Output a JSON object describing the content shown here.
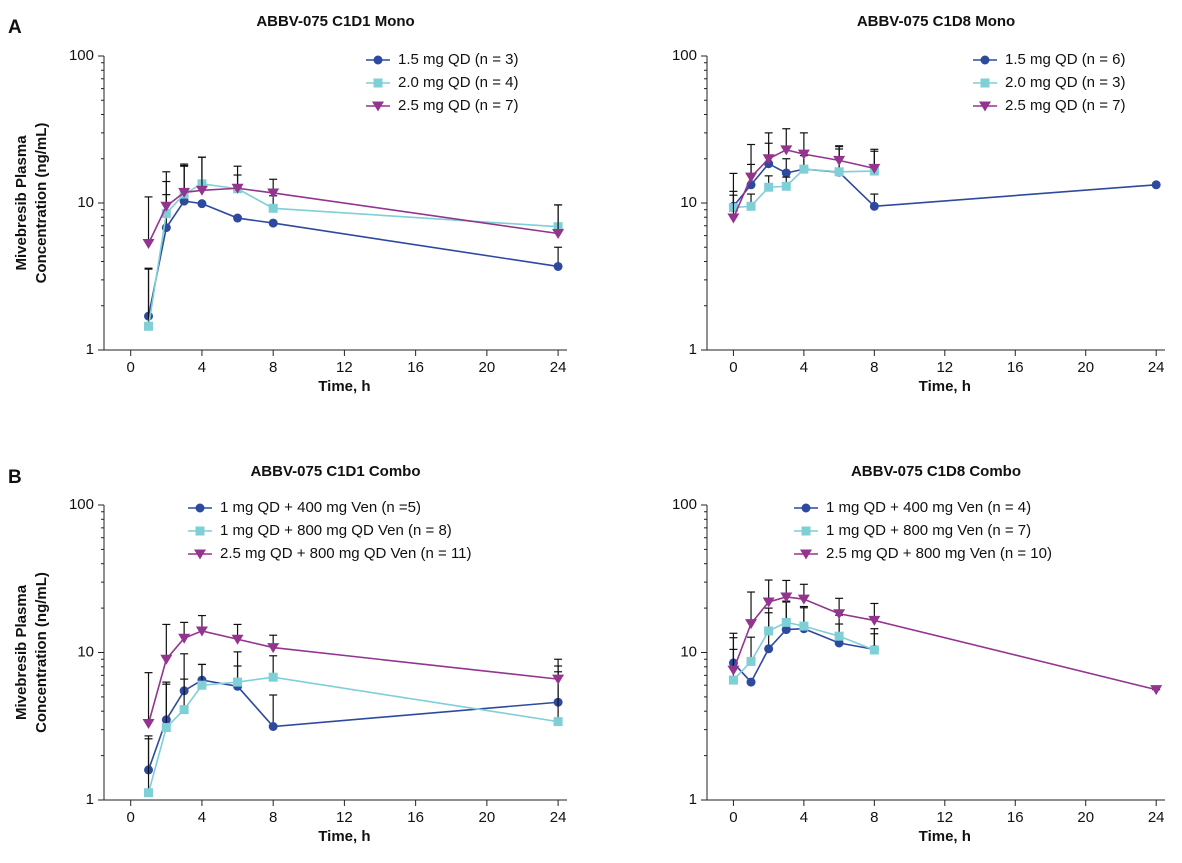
{
  "chart_data": [
    {
      "type": "line",
      "panel_label": "A",
      "title": "ABBV-075 C1D1 Mono",
      "ylabel": [
        "Mivebresib Plasma",
        "Concentration (ng/mL)"
      ],
      "xlabel": "Time, h",
      "log_y": true,
      "xlim": [
        -1.5,
        24.5
      ],
      "ylim": [
        1,
        100
      ],
      "xticks": [
        0,
        4,
        8,
        12,
        16,
        20,
        24
      ],
      "yticks": [
        1,
        10,
        100
      ],
      "x": [
        1,
        2,
        3,
        4,
        6,
        8,
        24
      ],
      "series": [
        {
          "name": "1.5 mg QD (n = 3)",
          "color": "#2e4a9e",
          "marker": "circle",
          "values": [
            1.7,
            6.8,
            10.3,
            9.9,
            7.9,
            7.3,
            3.7
          ],
          "errors": [
            1.9,
            4.6,
            7.5,
            0,
            0,
            0,
            1.3
          ]
        },
        {
          "name": "2.0 mg QD (n = 4)",
          "color": "#7fcfd6",
          "marker": "square",
          "values": [
            1.45,
            8.5,
            11.5,
            13.5,
            12.5,
            9.2,
            6.9
          ],
          "errors": [
            2.1,
            5.5,
            6.5,
            7,
            3,
            2,
            2.8
          ]
        },
        {
          "name": "2.5 mg QD (n = 7)",
          "color": "#93358f",
          "marker": "triangle",
          "values": [
            5.3,
            9.5,
            11.8,
            12.2,
            12.6,
            11.7,
            6.2
          ],
          "errors": [
            5.7,
            6.8,
            6.6,
            8.3,
            5.2,
            2.8,
            3.5
          ]
        }
      ]
    },
    {
      "type": "line",
      "title": "ABBV-075 C1D8 Mono",
      "xlabel": "Time, h",
      "log_y": true,
      "xlim": [
        -1.5,
        24.5
      ],
      "ylim": [
        1,
        100
      ],
      "xticks": [
        0,
        4,
        8,
        12,
        16,
        20,
        24
      ],
      "yticks": [
        1,
        10,
        100
      ],
      "x": [
        0,
        1,
        2,
        3,
        4,
        6,
        8,
        24
      ],
      "series": [
        {
          "name": "1.5 mg QD (n = 6)",
          "color": "#2e4a9e",
          "marker": "circle",
          "values": [
            9.5,
            13.3,
            18.5,
            16,
            17,
            16.2,
            9.5,
            13.3
          ],
          "errors": [
            2.5,
            5,
            7,
            4,
            5,
            8,
            2,
            0
          ]
        },
        {
          "name": "2.0 mg QD (n = 3)",
          "color": "#7fcfd6",
          "marker": "square",
          "values": [
            9.3,
            9.5,
            12.8,
            13,
            17,
            16.3,
            16.5,
            null
          ],
          "errors": [
            2,
            2,
            2.5,
            2,
            4,
            7,
            6,
            null
          ]
        },
        {
          "name": "2.5 mg QD (n = 7)",
          "color": "#93358f",
          "marker": "triangle",
          "values": [
            7.9,
            15,
            20,
            23,
            21.5,
            19.5,
            17.2,
            null
          ],
          "errors": [
            8,
            10,
            10,
            9,
            8.5,
            5,
            6,
            null
          ]
        }
      ]
    },
    {
      "type": "line",
      "panel_label": "B",
      "title": "ABBV-075 C1D1 Combo",
      "ylabel": [
        "Mivebresib Plasma",
        "Concentration (ng/mL)"
      ],
      "xlabel": "Time, h",
      "log_y": true,
      "xlim": [
        -1.5,
        24.5
      ],
      "ylim": [
        1,
        100
      ],
      "xticks": [
        0,
        4,
        8,
        12,
        16,
        20,
        24
      ],
      "yticks": [
        1,
        10,
        100
      ],
      "x": [
        1,
        2,
        3,
        4,
        6,
        8,
        24
      ],
      "series": [
        {
          "name": "1 mg QD + 400 mg Ven (n =5)",
          "color": "#2e4a9e",
          "marker": "circle",
          "values": [
            1.6,
            3.5,
            5.5,
            6.5,
            5.9,
            3.15,
            4.6
          ],
          "errors": [
            1,
            2.8,
            4.3,
            1.8,
            2.2,
            2,
            3.5
          ]
        },
        {
          "name": "1 mg QD + 800 mg QD Ven (n = 8)",
          "color": "#7fcfd6",
          "marker": "square",
          "values": [
            1.12,
            3.1,
            4.1,
            6,
            6.3,
            6.8,
            3.4
          ],
          "errors": [
            1.6,
            3,
            2.5,
            2.3,
            3.8,
            2.7,
            4
          ]
        },
        {
          "name": "2.5 mg QD + 800 mg QD Ven (n = 11)",
          "color": "#93358f",
          "marker": "triangle",
          "values": [
            3.3,
            9,
            12.5,
            14,
            12.3,
            10.8,
            6.6
          ],
          "errors": [
            4,
            6.5,
            3.5,
            3.8,
            3.2,
            2.3,
            2.4
          ]
        }
      ]
    },
    {
      "type": "line",
      "title": "ABBV-075 C1D8 Combo",
      "xlabel": "Time, h",
      "log_y": true,
      "xlim": [
        -1.5,
        24.5
      ],
      "ylim": [
        1,
        100
      ],
      "xticks": [
        0,
        4,
        8,
        12,
        16,
        20,
        24
      ],
      "yticks": [
        1,
        10,
        100
      ],
      "x": [
        0,
        1,
        2,
        3,
        4,
        6,
        8,
        24
      ],
      "series": [
        {
          "name": "1 mg QD + 400 mg Ven (n = 4)",
          "color": "#2e4a9e",
          "marker": "circle",
          "values": [
            8.5,
            6.3,
            10.6,
            14.3,
            14.5,
            11.6,
            10.5,
            null
          ],
          "errors": [
            5,
            0,
            8,
            8,
            6,
            4,
            4,
            null
          ]
        },
        {
          "name": "1 mg QD + 800 mg Ven (n = 7)",
          "color": "#7fcfd6",
          "marker": "square",
          "values": [
            6.5,
            8.7,
            14,
            16,
            15.1,
            12.9,
            10.4,
            null
          ],
          "errors": [
            4,
            4,
            6,
            6,
            5,
            5,
            3,
            null
          ]
        },
        {
          "name": "2.5 mg QD + 800 mg Ven (n = 10)",
          "color": "#93358f",
          "marker": "triangle",
          "values": [
            7.6,
            15.7,
            22,
            23.8,
            23,
            18.3,
            16.5,
            5.6
          ],
          "errors": [
            5,
            10,
            9,
            7,
            6,
            5,
            5,
            0
          ]
        }
      ]
    }
  ]
}
